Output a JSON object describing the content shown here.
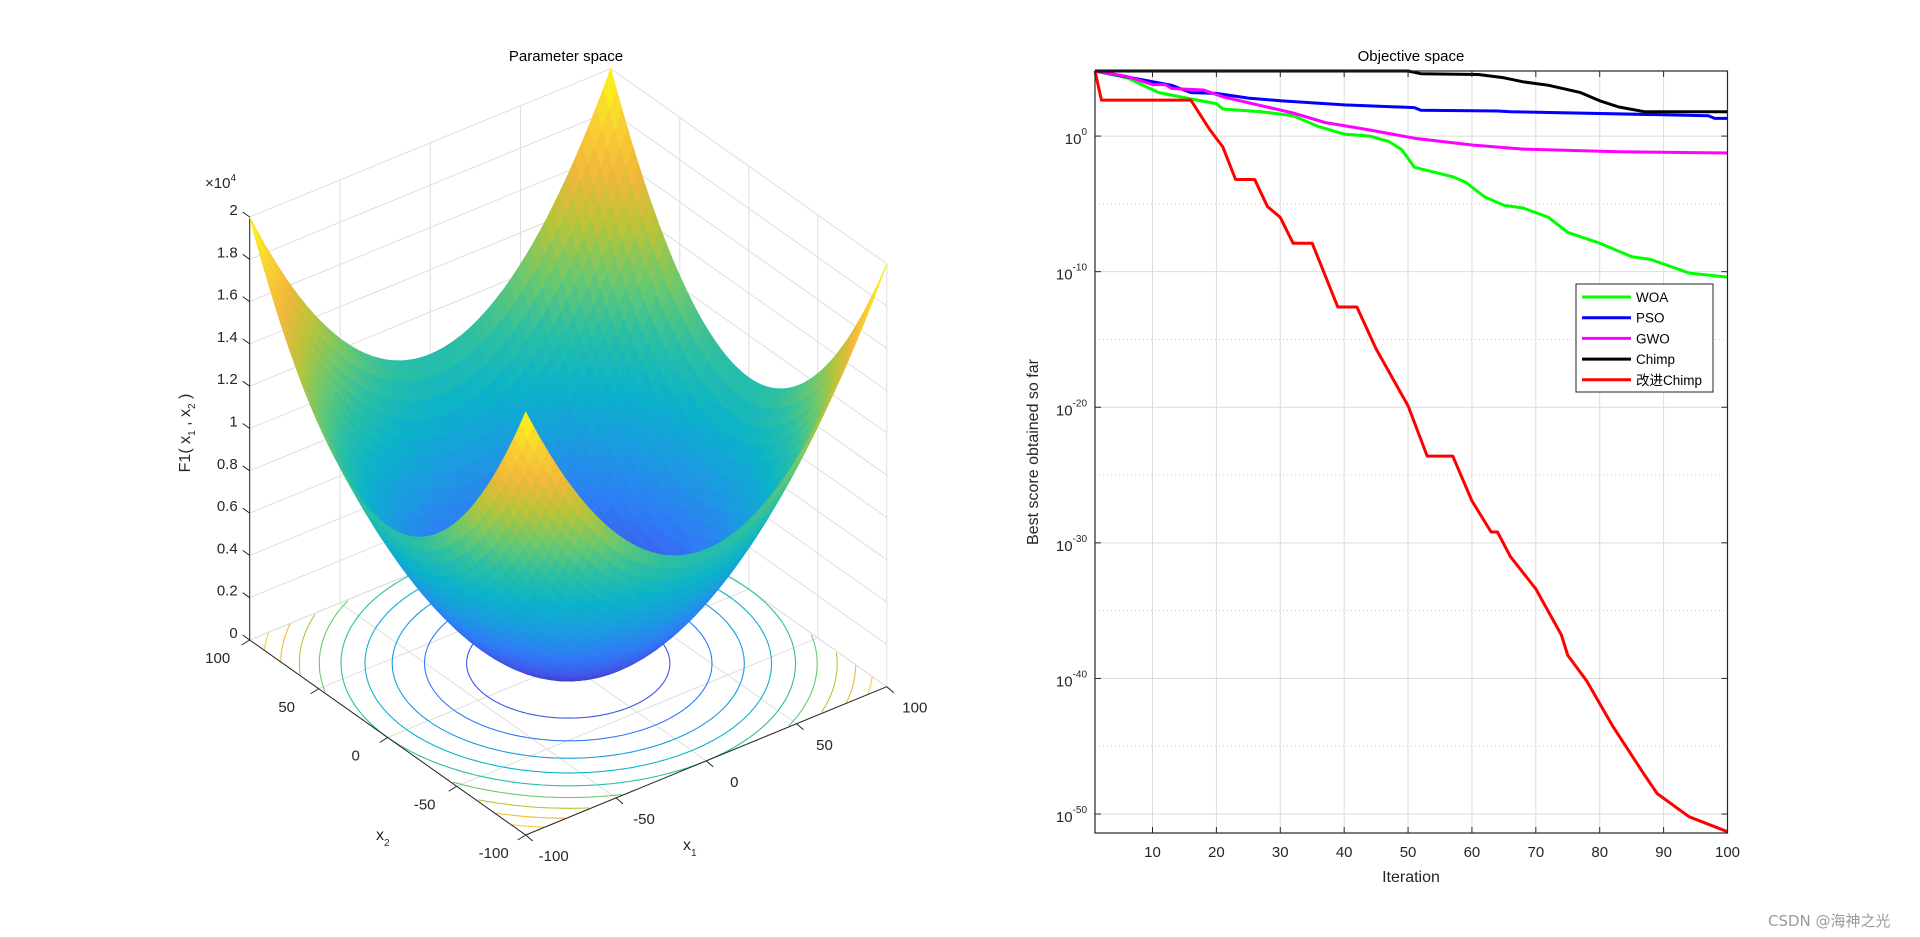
{
  "chart_data": [
    {
      "type": "surface",
      "title": "Parameter space",
      "xlabel": "x_1",
      "ylabel": "x_2",
      "zlabel": "F1( x_1 , x_2 )",
      "x_range": [
        -100,
        100
      ],
      "y_range": [
        -100,
        100
      ],
      "z_range": [
        0,
        20000
      ],
      "z_exponent_label": "×10",
      "z_exponent": "4",
      "x_ticks": [
        "-100",
        "-50",
        "0",
        "50",
        "100"
      ],
      "y_ticks": [
        "-100",
        "-50",
        "0",
        "50",
        "100"
      ],
      "z_ticks": [
        "0",
        "0.2",
        "0.4",
        "0.6",
        "0.8",
        "1",
        "1.2",
        "1.4",
        "1.6",
        "1.8",
        "2"
      ],
      "x_labels": {
        "main": "x",
        "sub": "1"
      },
      "y_labels": {
        "main": "x",
        "sub": "2"
      },
      "z_label_parts": {
        "pre": "F1( x",
        "sub1": "1",
        "mid": " , x",
        "sub2": "2",
        "post": " )"
      },
      "colormap": "parula",
      "contour_on_floor": true,
      "grid": true
    },
    {
      "type": "line",
      "title": "Objective space",
      "xlabel": "Iteration",
      "ylabel": "Best score obtained so far",
      "xlim": [
        1,
        100
      ],
      "ylim": [
        4e-52,
        63000.0
      ],
      "yscale": "log",
      "grid": true,
      "legend_position": "right",
      "x_ticks": [
        "10",
        "20",
        "30",
        "40",
        "50",
        "60",
        "70",
        "80",
        "90",
        "100"
      ],
      "y_ticks": [
        {
          "base": "10",
          "exp": "0"
        },
        {
          "base": "10",
          "exp": "-10"
        },
        {
          "base": "10",
          "exp": "-20"
        },
        {
          "base": "10",
          "exp": "-30"
        },
        {
          "base": "10",
          "exp": "-40"
        },
        {
          "base": "10",
          "exp": "-50"
        }
      ],
      "series": [
        {
          "name": "WOA",
          "color": "#00ff00",
          "x": [
            1,
            6,
            11,
            17,
            20,
            21,
            27,
            32,
            36,
            40,
            44,
            47,
            49,
            51,
            57,
            59,
            62,
            65,
            68,
            72,
            75,
            80,
            85,
            88,
            94,
            100
          ],
          "y": [
            63000.0,
            20000.0,
            1600.0,
            450.0,
            250.0,
            100.0,
            63,
            32,
            5,
            1.4,
            1,
            0.4,
            0.1,
            0.005,
            0.001,
            0.0004,
            3.2e-05,
            7.9e-06,
            5e-06,
            1e-06,
            7.9e-08,
            1.26e-08,
            1.26e-09,
            7.9e-10,
            7.9e-11,
            4e-11
          ]
        },
        {
          "name": "PSO",
          "color": "#0000ff",
          "x": [
            1,
            13,
            16,
            20,
            25,
            30,
            40,
            51,
            52,
            64,
            66,
            97,
            98,
            100
          ],
          "y": [
            63000.0,
            5600.0,
            1600.0,
            1400.0,
            630.0,
            400.0,
            200.0,
            126,
            79,
            71,
            63,
            32,
            20,
            20
          ]
        },
        {
          "name": "GWO",
          "color": "#ff00ff",
          "x": [
            1,
            6,
            10,
            12,
            13,
            18,
            21,
            32,
            37,
            44,
            51,
            60,
            68,
            83,
            100
          ],
          "y": [
            63000.0,
            25000.0,
            6300.0,
            6300.0,
            3200.0,
            2500.0,
            790.0,
            50,
            10,
            2.8,
            0.7,
            0.22,
            0.11,
            0.07,
            0.056
          ]
        },
        {
          "name": "Chimp",
          "color": "#000000",
          "x": [
            1,
            50,
            52,
            61,
            65,
            68,
            72,
            77,
            80,
            83,
            87,
            100
          ],
          "y": [
            63000.0,
            63000.0,
            40000.0,
            35000.0,
            20000.0,
            10000.0,
            5600.0,
            1600.0,
            400.0,
            140.0,
            63,
            63
          ]
        },
        {
          "name": "改进Chimp",
          "color": "#ff0000",
          "x": [
            1,
            2,
            16,
            19,
            21,
            23,
            26,
            28,
            30,
            32,
            35,
            39,
            42,
            45,
            50,
            53,
            57,
            60,
            63,
            64,
            66,
            70,
            74,
            75,
            78,
            82,
            87,
            89,
            94,
            100
          ],
          "y": [
            63000.0,
            450.0,
            450.0,
            2.8,
            0.16,
            0.00063,
            0.00063,
            6.3e-06,
            1e-06,
            1.26e-08,
            1.26e-08,
            2.5e-13,
            2.5e-13,
            2e-16,
            1.26e-20,
            2.5e-24,
            2.5e-24,
            1.26e-27,
            6.3e-30,
            6.3e-30,
            1e-31,
            4e-34,
            1.6e-37,
            5e-39,
            6.3e-41,
            3.2e-44,
            7.9e-48,
            3.2e-49,
            6.3e-51,
            5e-52
          ]
        }
      ]
    }
  ],
  "watermark": "CSDN @海神之光"
}
